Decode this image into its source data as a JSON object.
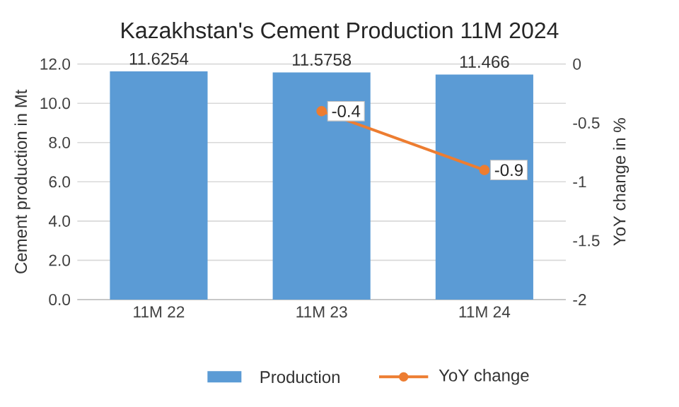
{
  "chart_data": {
    "type": "bar",
    "title": "Kazakhstan's Cement Production 11M 2024",
    "ylabel": "Cement production in Mt",
    "y2label": "YoY change in %",
    "categories": [
      "11M 22",
      "11M 23",
      "11M 24"
    ],
    "series": [
      {
        "name": "Production",
        "color": "#5b9bd5",
        "values": [
          11.6254,
          11.5758,
          11.466
        ]
      },
      {
        "name": "YoY change",
        "type": "line",
        "axis": "y2",
        "color": "#ed7d31",
        "marker": "circle",
        "values": [
          null,
          -0.4,
          -0.9
        ]
      }
    ],
    "ylim": [
      0,
      12
    ],
    "yticks": [
      {
        "value": 0,
        "label": "0.0"
      },
      {
        "value": 2,
        "label": "2.0"
      },
      {
        "value": 4,
        "label": "4.0"
      },
      {
        "value": 6,
        "label": "6.0"
      },
      {
        "value": 8,
        "label": "8.0"
      },
      {
        "value": 10,
        "label": "10.0"
      },
      {
        "value": 12,
        "label": "12.0"
      }
    ],
    "y2lim": [
      -2,
      0
    ],
    "y2ticks": [
      -2,
      -1.5,
      -1,
      -0.5,
      0
    ],
    "data_labels": true,
    "grid": "y",
    "legend": "bottom"
  }
}
